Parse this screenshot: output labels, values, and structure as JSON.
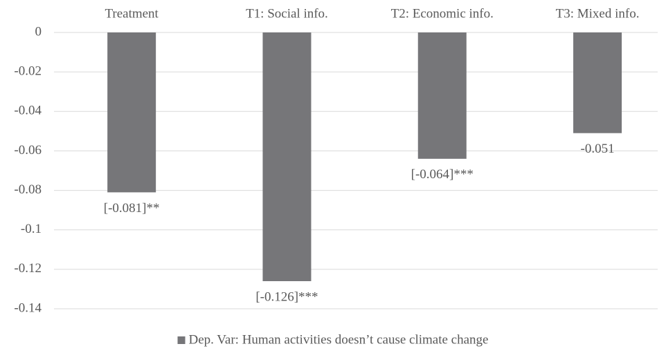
{
  "chart_data": {
    "type": "bar",
    "categories": [
      "Treatment",
      "T1: Social info.",
      "T2: Economic info.",
      "T3: Mixed info."
    ],
    "series": [
      {
        "name": "Dep. Var: Human activities doesn’t cause climate change",
        "color": "#767679",
        "values": [
          -0.081,
          -0.126,
          -0.064,
          -0.051
        ],
        "value_labels": [
          "[-0.081]**",
          "[-0.126]***",
          "[-0.064]***",
          "-0.051"
        ]
      }
    ],
    "ylim": [
      -0.14,
      0
    ],
    "yticks": [
      0,
      -0.02,
      -0.04,
      -0.06,
      -0.08,
      -0.1,
      -0.12,
      -0.14
    ],
    "grid": true,
    "legend": "bottom"
  }
}
